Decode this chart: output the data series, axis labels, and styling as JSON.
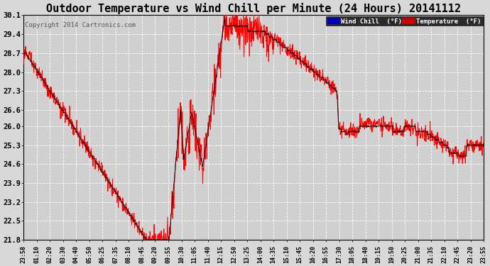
{
  "title": "Outdoor Temperature vs Wind Chill per Minute (24 Hours) 20141112",
  "copyright": "Copyright 2014 Cartronics.com",
  "yticks": [
    21.8,
    22.5,
    23.2,
    23.9,
    24.6,
    25.3,
    26.0,
    26.6,
    27.3,
    28.0,
    28.7,
    29.4,
    30.1
  ],
  "ymin": 21.8,
  "ymax": 30.1,
  "wind_chill_color": "red",
  "temp_color": "#111111",
  "legend_wind_bg": "#0000bb",
  "legend_temp_bg": "#cc0000",
  "background_color": "#d8d8d8",
  "plot_bg": "#d0d0d0",
  "grid_color": "white",
  "title_fontsize": 11,
  "xtick_labels": [
    "23:58",
    "01:10",
    "02:20",
    "03:30",
    "04:40",
    "05:50",
    "06:25",
    "07:35",
    "08:10",
    "08:45",
    "09:20",
    "09:55",
    "10:30",
    "11:05",
    "11:40",
    "12:15",
    "12:50",
    "13:25",
    "14:00",
    "14:35",
    "15:10",
    "15:45",
    "16:20",
    "16:55",
    "17:30",
    "18:05",
    "18:40",
    "19:15",
    "19:50",
    "20:25",
    "21:00",
    "21:35",
    "22:10",
    "22:45",
    "23:20",
    "23:55"
  ]
}
